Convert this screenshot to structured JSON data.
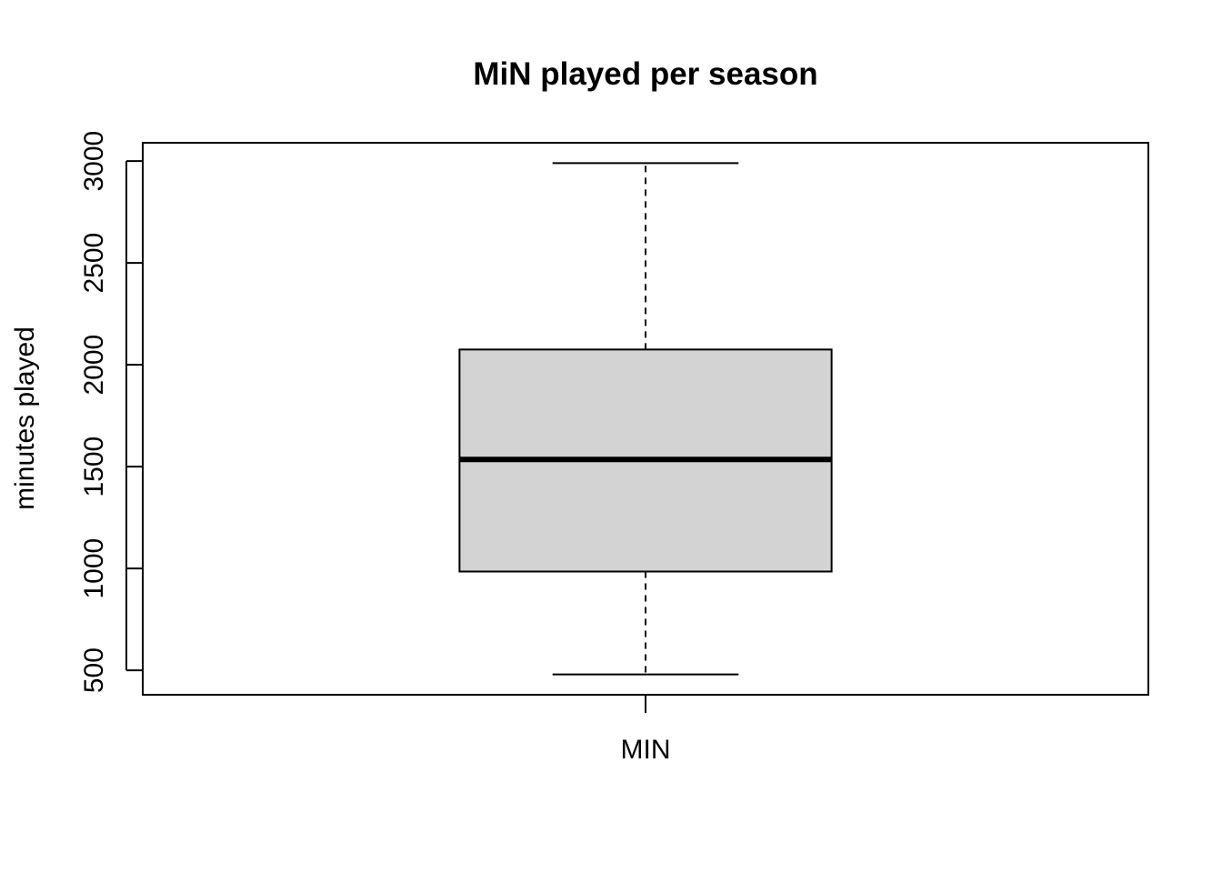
{
  "chart_data": {
    "type": "boxplot",
    "title": "MiN played per season",
    "xlabel": "",
    "ylabel": "minutes played",
    "categories": [
      "MIN"
    ],
    "boxes": [
      {
        "category": "MIN",
        "whisker_low": 480,
        "q1": 985,
        "median": 1535,
        "q3": 2075,
        "whisker_high": 2990
      }
    ],
    "yticks": [
      500,
      1000,
      1500,
      2000,
      2500,
      3000
    ],
    "ytick_labels": [
      "500",
      "1000",
      "1500",
      "2000",
      "2500",
      "3000"
    ],
    "ylim": [
      380,
      3090
    ],
    "grid": false,
    "box_fill": "#d3d3d3",
    "line_color": "#000000"
  }
}
